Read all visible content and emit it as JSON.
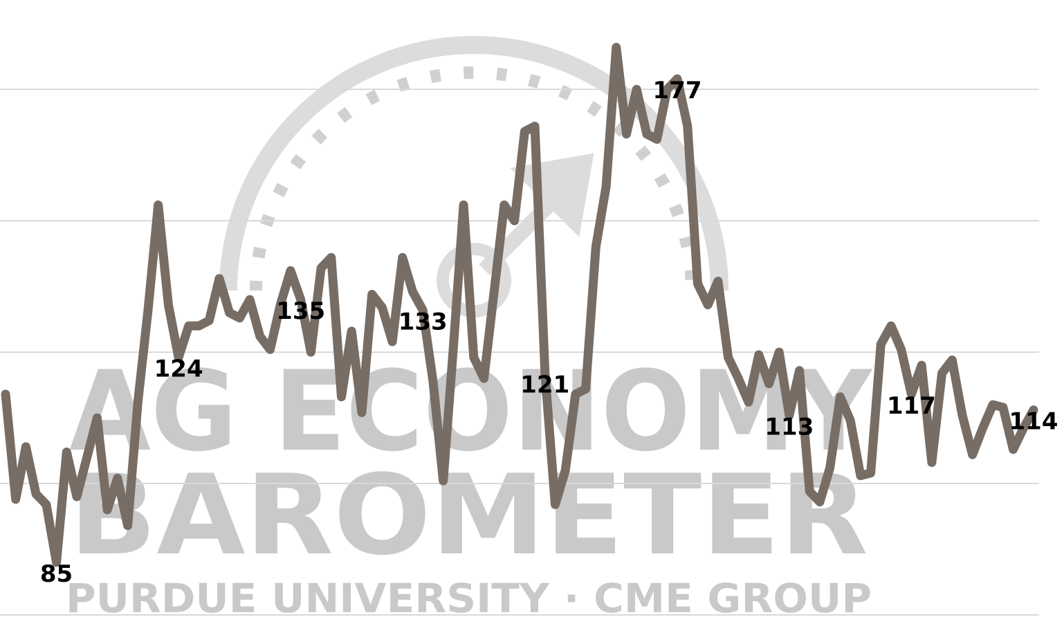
{
  "chart_data": {
    "type": "line",
    "watermark": {
      "line1": "AG ECONOMY",
      "line2": "BAROMETER",
      "line3": "PURDUE UNIVERSITY · CME GROUP"
    },
    "values": [
      117,
      97,
      107,
      98,
      96,
      85,
      106,
      97.5,
      105,
      112.5,
      95,
      101,
      92,
      115.5,
      133,
      153,
      134,
      124,
      130,
      130,
      131,
      139,
      132.5,
      131.5,
      135,
      128,
      125.5,
      134,
      140.5,
      135,
      125,
      141,
      143,
      116.5,
      129,
      113.5,
      136,
      133.5,
      127,
      143,
      136.5,
      133,
      119.5,
      100.5,
      126,
      153,
      124,
      120,
      136.5,
      153,
      150,
      167,
      168,
      121,
      96,
      102.5,
      117,
      118,
      145,
      156.5,
      183,
      166.5,
      175,
      166.5,
      165.5,
      175,
      177,
      168,
      138,
      134,
      138.5,
      124,
      120,
      115.5,
      124.5,
      119,
      125,
      113,
      121.5,
      98.5,
      96.5,
      103,
      116.5,
      112,
      101.5,
      102,
      126.5,
      130,
      125.5,
      117,
      122.5,
      104,
      121,
      123.5,
      113,
      105.5,
      110.5,
      115,
      114.5,
      106.5,
      110.5,
      114
    ],
    "labeled_points": [
      5,
      17,
      29,
      41,
      53,
      66,
      77,
      89,
      101
    ],
    "color": "#776d65",
    "ylim": [
      75,
      192
    ],
    "yticks": [
      75,
      100,
      125,
      150,
      175
    ],
    "grid": true
  }
}
